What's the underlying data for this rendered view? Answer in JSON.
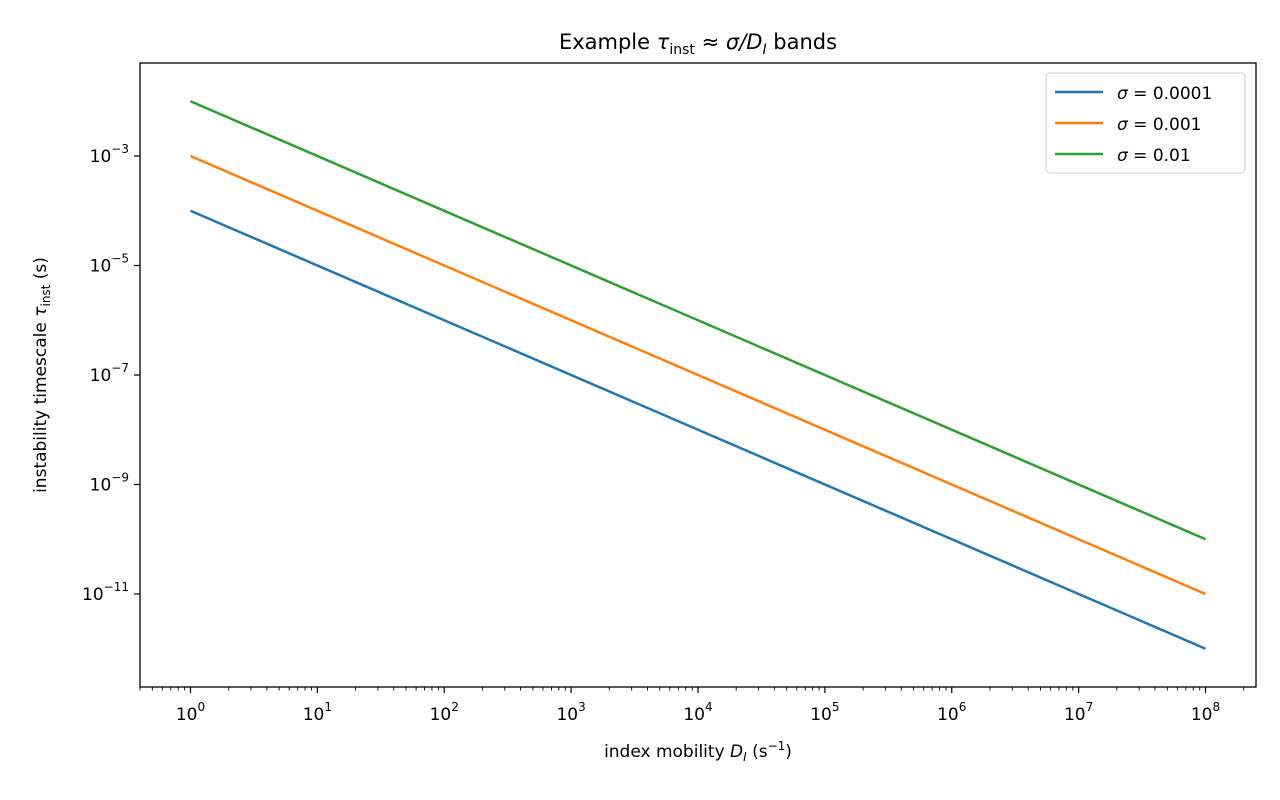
{
  "chart_data": {
    "type": "line",
    "title": {
      "prefix": "Example ",
      "tau": "τ",
      "tau_sub": "inst",
      "approx": " ≈ ",
      "sigma": "σ",
      "slash": "/",
      "d": "D",
      "d_sub": "I",
      "suffix": " bands"
    },
    "xlabel": {
      "prefix": "index mobility ",
      "d": "D",
      "d_sub": "I",
      "unit_open": " (s",
      "unit_exp": "−1",
      "unit_close": ")"
    },
    "ylabel": {
      "prefix": "instability timescale ",
      "tau": "τ",
      "tau_sub": "inst",
      "unit": " (s)"
    },
    "x_scale": "log",
    "y_scale": "log",
    "xlim": [
      0.4,
      250000000
    ],
    "ylim": [
      2e-13,
      0.05
    ],
    "x_ticks": [
      {
        "base": "10",
        "exp": "0",
        "value": 1
      },
      {
        "base": "10",
        "exp": "1",
        "value": 10
      },
      {
        "base": "10",
        "exp": "2",
        "value": 100
      },
      {
        "base": "10",
        "exp": "3",
        "value": 1000
      },
      {
        "base": "10",
        "exp": "4",
        "value": 10000
      },
      {
        "base": "10",
        "exp": "5",
        "value": 100000
      },
      {
        "base": "10",
        "exp": "6",
        "value": 1000000
      },
      {
        "base": "10",
        "exp": "7",
        "value": 10000000
      },
      {
        "base": "10",
        "exp": "8",
        "value": 100000000
      }
    ],
    "y_ticks": [
      {
        "base": "10",
        "exp": "−3",
        "value": 0.001
      },
      {
        "base": "10",
        "exp": "−5",
        "value": 1e-05
      },
      {
        "base": "10",
        "exp": "−7",
        "value": 1e-07
      },
      {
        "base": "10",
        "exp": "−9",
        "value": 1e-09
      },
      {
        "base": "10",
        "exp": "−11",
        "value": 1e-11
      }
    ],
    "grid": false,
    "legend_position": "top-right",
    "series": [
      {
        "name": "σ = 0.0001",
        "sigma_symbol": "σ",
        "label_value": " = 0.0001",
        "color": "#1f77b4",
        "x": [
          1,
          100000000
        ],
        "y": [
          0.0001,
          1e-12
        ]
      },
      {
        "name": "σ = 0.001",
        "sigma_symbol": "σ",
        "label_value": " = 0.001",
        "color": "#ff7f0e",
        "x": [
          1,
          100000000
        ],
        "y": [
          0.001,
          1e-11
        ]
      },
      {
        "name": "σ = 0.01",
        "sigma_symbol": "σ",
        "label_value": " = 0.01",
        "color": "#2ca02c",
        "x": [
          1,
          100000000
        ],
        "y": [
          0.01,
          1e-10
        ]
      }
    ]
  }
}
